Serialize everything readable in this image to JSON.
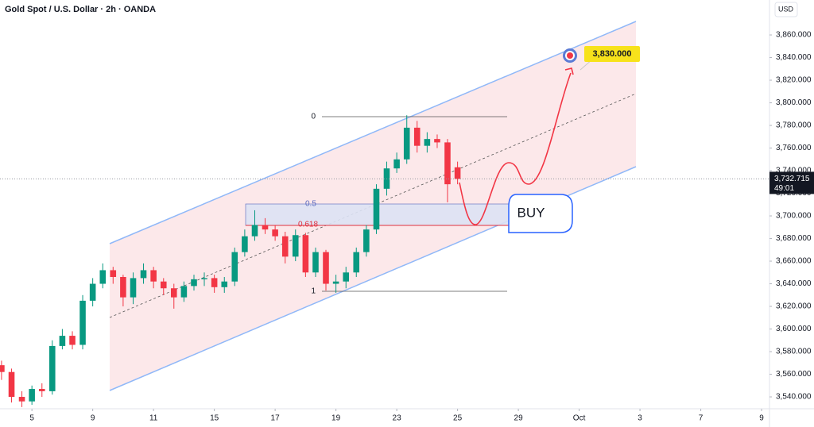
{
  "chart_data": {
    "type": "candlestick",
    "title": "Gold Spot / U.S. Dollar · 2h · OANDA",
    "currency": "USD",
    "x": [
      -1,
      -0.67,
      -0.33,
      0,
      0.33,
      0.67,
      1,
      1.33,
      1.67,
      2,
      2.33,
      2.67,
      3,
      3.33,
      3.67,
      4,
      4.33,
      4.67,
      5,
      5.33,
      5.67,
      6,
      6.33,
      6.67,
      7,
      7.33,
      7.67,
      8,
      8.33,
      8.67,
      9,
      9.33,
      9.67,
      10,
      10.33,
      10.67,
      11,
      11.33,
      11.67,
      12,
      12.33,
      12.67,
      13,
      13.33,
      13.67,
      14
    ],
    "open": [
      3568,
      3562,
      3540,
      3536,
      3547,
      3545,
      3585,
      3594,
      3586,
      3625,
      3640,
      3652,
      3646,
      3628,
      3645,
      3652,
      3642,
      3636,
      3628,
      3638,
      3644,
      3645,
      3637,
      3642,
      3668,
      3682,
      3692,
      3688,
      3682,
      3664,
      3683,
      3650,
      3668,
      3640,
      3642,
      3650,
      3668,
      3688,
      3724,
      3742,
      3750,
      3778,
      3762,
      3768,
      3765,
      3743
    ],
    "high": [
      3572,
      3565,
      3545,
      3550,
      3552,
      3590,
      3600,
      3598,
      3630,
      3645,
      3658,
      3655,
      3648,
      3650,
      3658,
      3655,
      3645,
      3640,
      3642,
      3648,
      3650,
      3648,
      3646,
      3672,
      3688,
      3705,
      3698,
      3692,
      3686,
      3688,
      3685,
      3672,
      3670,
      3648,
      3655,
      3672,
      3692,
      3728,
      3748,
      3756,
      3789,
      3784,
      3774,
      3772,
      3768,
      3748
    ],
    "low": [
      3555,
      3535,
      3531,
      3533,
      3540,
      3542,
      3582,
      3582,
      3582,
      3620,
      3636,
      3640,
      3620,
      3622,
      3640,
      3636,
      3630,
      3618,
      3624,
      3634,
      3638,
      3632,
      3632,
      3638,
      3664,
      3678,
      3684,
      3678,
      3658,
      3660,
      3646,
      3646,
      3634,
      3632,
      3636,
      3646,
      3664,
      3684,
      3718,
      3738,
      3746,
      3756,
      3756,
      3760,
      3712,
      3728
    ],
    "close": [
      3562,
      3540,
      3536,
      3547,
      3545,
      3585,
      3594,
      3586,
      3625,
      3640,
      3652,
      3646,
      3628,
      3645,
      3652,
      3642,
      3636,
      3628,
      3638,
      3644,
      3645,
      3637,
      3642,
      3668,
      3682,
      3692,
      3688,
      3682,
      3664,
      3683,
      3650,
      3668,
      3640,
      3642,
      3650,
      3668,
      3688,
      3724,
      3742,
      3750,
      3778,
      3762,
      3768,
      3765,
      3728,
      3732.715
    ],
    "up_color": "#089981",
    "down_color": "#f23645",
    "xlim": [
      -1.05,
      24.26
    ],
    "xticks": [
      {
        "value": 0,
        "label": "5"
      },
      {
        "value": 2,
        "label": "9"
      },
      {
        "value": 4,
        "label": "11"
      },
      {
        "value": 6,
        "label": "15"
      },
      {
        "value": 8,
        "label": "17"
      },
      {
        "value": 10,
        "label": "19"
      },
      {
        "value": 12,
        "label": "23"
      },
      {
        "value": 14,
        "label": "25"
      },
      {
        "value": 16,
        "label": "29"
      },
      {
        "value": 18,
        "label": "Oct"
      },
      {
        "value": 20,
        "label": "3"
      },
      {
        "value": 22,
        "label": "7"
      },
      {
        "value": 24,
        "label": "9"
      }
    ],
    "ylim": [
      3529.5,
      3890.9
    ],
    "yticks": [
      {
        "value": 3540,
        "label": "3,540.000"
      },
      {
        "value": 3560,
        "label": "3,560.000"
      },
      {
        "value": 3580,
        "label": "3,580.000"
      },
      {
        "value": 3600,
        "label": "3,600.000"
      },
      {
        "value": 3620,
        "label": "3,620.000"
      },
      {
        "value": 3640,
        "label": "3,640.000"
      },
      {
        "value": 3660,
        "label": "3,660.000"
      },
      {
        "value": 3680,
        "label": "3,680.000"
      },
      {
        "value": 3700,
        "label": "3,700.000"
      },
      {
        "value": 3720,
        "label": "3,720.000"
      },
      {
        "value": 3740,
        "label": "3,740.000"
      },
      {
        "value": 3760,
        "label": "3,760.000"
      },
      {
        "value": 3780,
        "label": "3,780.000"
      },
      {
        "value": 3800,
        "label": "3,800.000"
      },
      {
        "value": 3820,
        "label": "3,820.000"
      },
      {
        "value": 3840,
        "label": "3,840.000"
      },
      {
        "value": 3860,
        "label": "3,860.000"
      }
    ],
    "last_price": {
      "value": 3732.715,
      "label": "3,732.715"
    },
    "countdown": "49:01",
    "annotations": {
      "fib_0": "0",
      "fib_05": "0.5",
      "fib_0618": "0.618",
      "fib_1": "1",
      "target": "3,830.000",
      "signal": "BUY"
    }
  }
}
